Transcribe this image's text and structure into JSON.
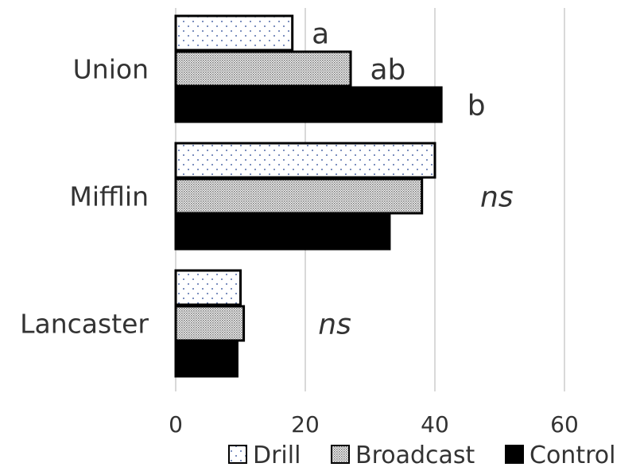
{
  "chart_data": {
    "type": "bar",
    "orientation": "horizontal",
    "categories": [
      "Union",
      "Mifflin",
      "Lancaster"
    ],
    "series": [
      {
        "name": "Drill",
        "values": [
          18,
          40,
          10
        ],
        "fill": "dots"
      },
      {
        "name": "Broadcast",
        "values": [
          27,
          38,
          10.5
        ],
        "fill": "fine-stipple"
      },
      {
        "name": "Control",
        "values": [
          41,
          33,
          9.5
        ],
        "fill": "solid-black"
      }
    ],
    "annotations": [
      {
        "category": "Union",
        "series": "Drill",
        "text": "a",
        "italic": false,
        "x_value": 21
      },
      {
        "category": "Union",
        "series": "Broadcast",
        "text": "ab",
        "italic": false,
        "x_value": 30
      },
      {
        "category": "Union",
        "series": "Control",
        "text": "b",
        "italic": false,
        "x_value": 45
      },
      {
        "category": "Mifflin",
        "series": "Broadcast",
        "text": "ns",
        "italic": true,
        "x_value": 47
      },
      {
        "category": "Lancaster",
        "series": "Broadcast",
        "text": "ns",
        "italic": true,
        "x_value": 22
      }
    ],
    "xlim": [
      0,
      60
    ],
    "x_ticks": [
      0,
      20,
      40,
      60
    ],
    "grid": true,
    "legend": "bottom",
    "colors": {
      "bar_stroke": "#000000",
      "grid": "#d9d9d9",
      "text": "#333333",
      "dot": "#1f3f8f"
    }
  }
}
